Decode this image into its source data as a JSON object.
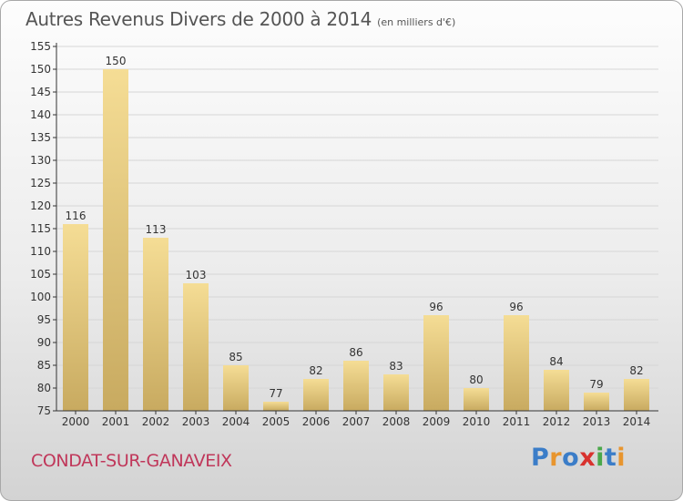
{
  "header": {
    "title": "Autres Revenus Divers de 2000 à 2014",
    "unit": "(en milliers d'€)"
  },
  "footer": {
    "town": "CONDAT-SUR-GANAVEIX",
    "logo_letters": [
      "P",
      "r",
      "o",
      "x",
      "i",
      "t",
      "i"
    ]
  },
  "colors": {
    "bar_light": "#f5dd95",
    "bar_dark": "#c8aa60",
    "grid": "#d6d6d6",
    "axis": "#333333",
    "town_text": "#c0375a"
  },
  "chart_data": {
    "type": "bar",
    "title": "Autres Revenus Divers de 2000 à 2014",
    "subtitle": "(en milliers d'€)",
    "categories": [
      "2000",
      "2001",
      "2002",
      "2003",
      "2004",
      "2005",
      "2006",
      "2007",
      "2008",
      "2009",
      "2010",
      "2011",
      "2012",
      "2013",
      "2014"
    ],
    "values": [
      116,
      150,
      113,
      103,
      85,
      77,
      82,
      86,
      83,
      96,
      80,
      96,
      84,
      79,
      82
    ],
    "data_labels": [
      "116",
      "150",
      "113",
      "103",
      "85",
      "77",
      "82",
      "86",
      "83",
      "96",
      "80",
      "96",
      "84",
      "79",
      "82"
    ],
    "ylim": [
      75,
      155
    ],
    "yticks": [
      75,
      80,
      85,
      90,
      95,
      100,
      105,
      110,
      115,
      120,
      125,
      130,
      135,
      140,
      145,
      150,
      155
    ],
    "xlabel": "",
    "ylabel": "",
    "grid": true,
    "legend": "none"
  }
}
